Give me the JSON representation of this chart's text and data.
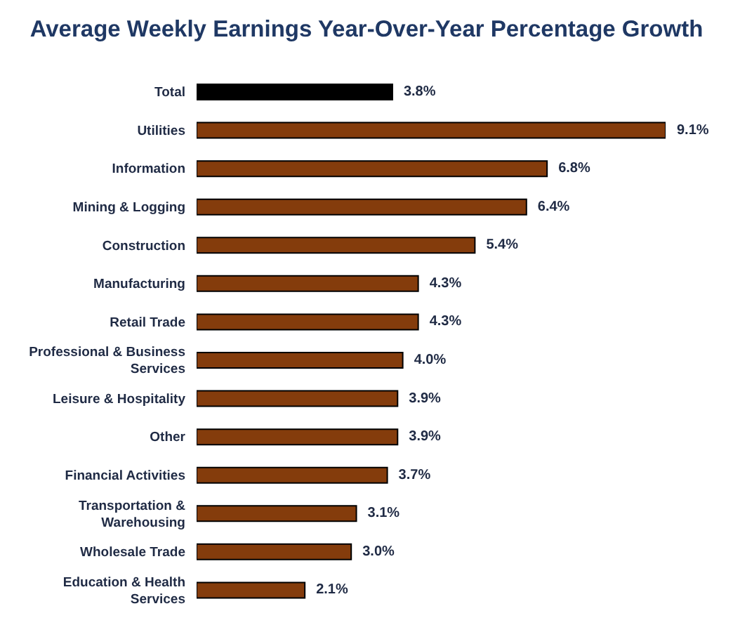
{
  "chart_data": {
    "type": "bar",
    "orientation": "horizontal",
    "title": "Average Weekly Earnings Year-Over-Year Percentage Growth",
    "categories": [
      "Total",
      "Utilities",
      "Information",
      "Mining & Logging",
      "Construction",
      "Manufacturing",
      "Retail Trade",
      "Professional & Business Services",
      "Leisure & Hospitality",
      "Other",
      "Financial Activities",
      "Transportation & Warehousing",
      "Wholesale Trade",
      "Education & Health Services"
    ],
    "values": [
      3.8,
      9.1,
      6.8,
      6.4,
      5.4,
      4.3,
      4.3,
      4.0,
      3.9,
      3.9,
      3.7,
      3.1,
      3.0,
      2.1
    ],
    "colors": [
      "#000000",
      "#843c0c",
      "#843c0c",
      "#843c0c",
      "#843c0c",
      "#843c0c",
      "#843c0c",
      "#843c0c",
      "#843c0c",
      "#843c0c",
      "#843c0c",
      "#843c0c",
      "#843c0c",
      "#843c0c"
    ],
    "value_labels": [
      "3.8%",
      "9.1%",
      "6.8%",
      "6.4%",
      "5.4%",
      "4.3%",
      "4.3%",
      "4.0%",
      "3.9%",
      "3.9%",
      "3.7%",
      "3.1%",
      "3.0%",
      "2.1%"
    ]
  }
}
